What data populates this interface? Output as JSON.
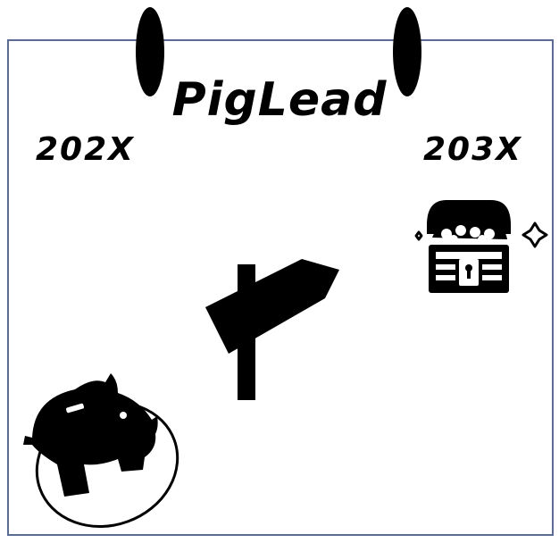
{
  "title": "PigLead",
  "years": {
    "start": "202X",
    "end": "203X"
  },
  "icons": {
    "piggy_bank": "piggy-bank-icon",
    "signpost": "signpost-icon",
    "treasure_chest": "treasure-chest-icon"
  },
  "colors": {
    "frame_border": "#5b6b93",
    "ink": "#000000"
  }
}
